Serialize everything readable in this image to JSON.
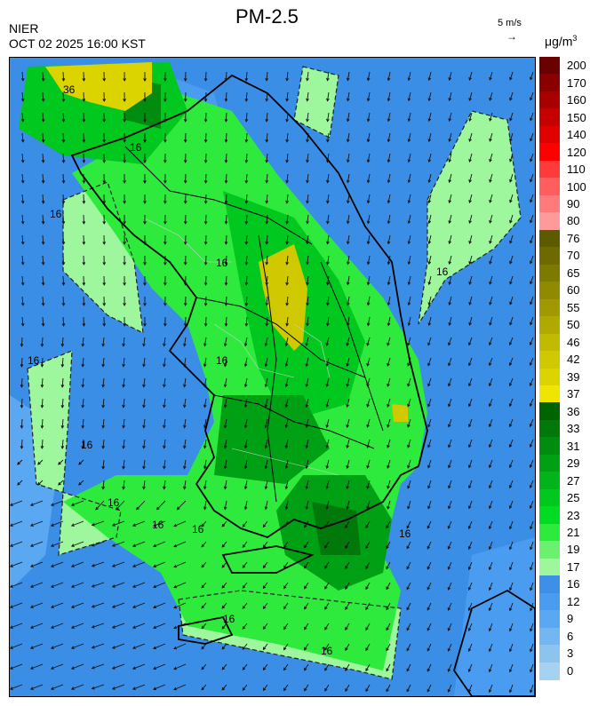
{
  "title": "PM-2.5",
  "agency": "NIER",
  "datetime": "OCT 02 2025 16:00 KST",
  "wind_ref": {
    "label": "5 m/s",
    "arrow": "→"
  },
  "unit": {
    "base": "μg/m",
    "exp": "3"
  },
  "contour_labels": [
    "36",
    "16",
    "16",
    "16",
    "16",
    "16",
    "16",
    "16",
    "16",
    "16",
    "16",
    "16",
    "16",
    "16"
  ],
  "legend": [
    {
      "label": "200",
      "color": "#6b0000"
    },
    {
      "label": "170",
      "color": "#8a0000"
    },
    {
      "label": "160",
      "color": "#a80000"
    },
    {
      "label": "150",
      "color": "#c40000"
    },
    {
      "label": "140",
      "color": "#e00000"
    },
    {
      "label": "120",
      "color": "#ff0000"
    },
    {
      "label": "110",
      "color": "#ff3a3a"
    },
    {
      "label": "100",
      "color": "#ff5e5e"
    },
    {
      "label": "90",
      "color": "#ff7a7a"
    },
    {
      "label": "80",
      "color": "#ff9a9a"
    },
    {
      "label": "76",
      "color": "#5e5a00"
    },
    {
      "label": "70",
      "color": "#6e6a00"
    },
    {
      "label": "65",
      "color": "#7e7a00"
    },
    {
      "label": "60",
      "color": "#8f8a00"
    },
    {
      "label": "55",
      "color": "#a09a00"
    },
    {
      "label": "50",
      "color": "#b0aa00"
    },
    {
      "label": "46",
      "color": "#c0ba00"
    },
    {
      "label": "42",
      "color": "#d0c800"
    },
    {
      "label": "39",
      "color": "#dcd400"
    },
    {
      "label": "37",
      "color": "#eee600"
    },
    {
      "label": "36",
      "color": "#006400"
    },
    {
      "label": "33",
      "color": "#00780a"
    },
    {
      "label": "31",
      "color": "#008c0e"
    },
    {
      "label": "29",
      "color": "#00a014"
    },
    {
      "label": "27",
      "color": "#00b41a"
    },
    {
      "label": "25",
      "color": "#00c81f"
    },
    {
      "label": "23",
      "color": "#00dc24"
    },
    {
      "label": "21",
      "color": "#2eea3c"
    },
    {
      "label": "19",
      "color": "#6cf070"
    },
    {
      "label": "17",
      "color": "#9ef79c"
    },
    {
      "label": "16",
      "color": "#3d8fe8"
    },
    {
      "label": "12",
      "color": "#4a9cf0"
    },
    {
      "label": "9",
      "color": "#5aa8f2"
    },
    {
      "label": "6",
      "color": "#74b6f2"
    },
    {
      "label": "3",
      "color": "#8cc4f0"
    },
    {
      "label": "0",
      "color": "#a6d2f2"
    }
  ]
}
